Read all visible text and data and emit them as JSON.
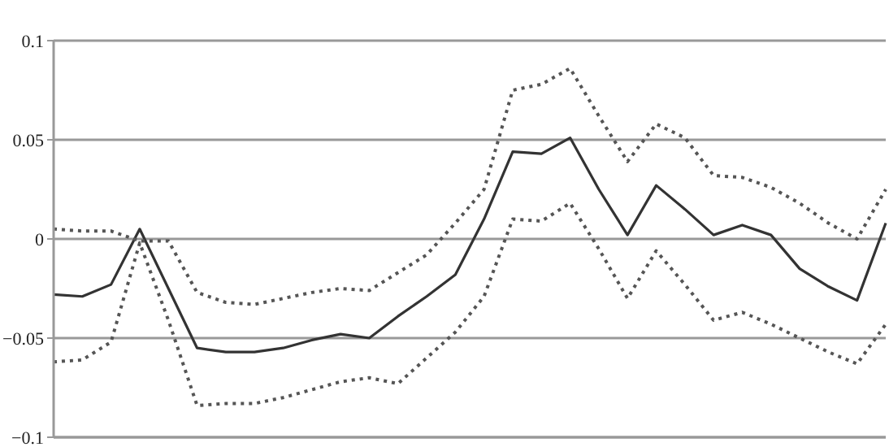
{
  "chart_data": {
    "type": "line",
    "categories": [
      null,
      null,
      null,
      null,
      null,
      null,
      null,
      null,
      null,
      null,
      null,
      null,
      null,
      null,
      null,
      null,
      null,
      null,
      null,
      null,
      null,
      null,
      null,
      null,
      null,
      null,
      null,
      null,
      null,
      null
    ],
    "series": [
      {
        "color": "#333333",
        "line_style": "solid",
        "values": [
          -0.028,
          -0.029,
          -0.023,
          0.005,
          -0.025,
          -0.055,
          -0.057,
          -0.057,
          -0.055,
          -0.051,
          -0.048,
          -0.05,
          -0.039,
          -0.029,
          -0.018,
          0.01,
          0.044,
          0.043,
          0.051,
          0.025,
          0.002,
          0.027,
          0.015,
          0.002,
          0.007,
          0.002,
          -0.015,
          -0.024,
          -0.031,
          0.008
        ]
      },
      {
        "color": "#555555",
        "line_style": "dotted",
        "values": [
          0.005,
          0.004,
          0.004,
          -0.001,
          -0.001,
          -0.027,
          -0.032,
          -0.033,
          -0.03,
          -0.027,
          -0.025,
          -0.026,
          -0.017,
          -0.008,
          0.008,
          0.025,
          0.075,
          0.078,
          0.086,
          0.062,
          0.039,
          0.058,
          0.051,
          0.032,
          0.031,
          0.026,
          0.018,
          0.008,
          0.0,
          0.025
        ]
      },
      {
        "color": "#555555",
        "line_style": "dotted",
        "values": [
          -0.062,
          -0.061,
          -0.052,
          -0.002,
          -0.041,
          -0.084,
          -0.083,
          -0.083,
          -0.08,
          -0.076,
          -0.072,
          -0.07,
          -0.073,
          -0.06,
          -0.047,
          -0.029,
          0.01,
          0.009,
          0.018,
          -0.005,
          -0.03,
          -0.006,
          -0.023,
          -0.041,
          -0.037,
          -0.043,
          -0.05,
          -0.057,
          -0.063,
          -0.043
        ]
      }
    ],
    "ylim": [
      -0.1,
      0.1
    ],
    "yticks": [
      0.1,
      0.05,
      0,
      {
        "value": -0.05,
        "label": "−0.05"
      },
      {
        "value": -0.1,
        "label": "−0.1"
      }
    ],
    "grid": "y",
    "tick_labels": "y",
    "marker": "none"
  }
}
